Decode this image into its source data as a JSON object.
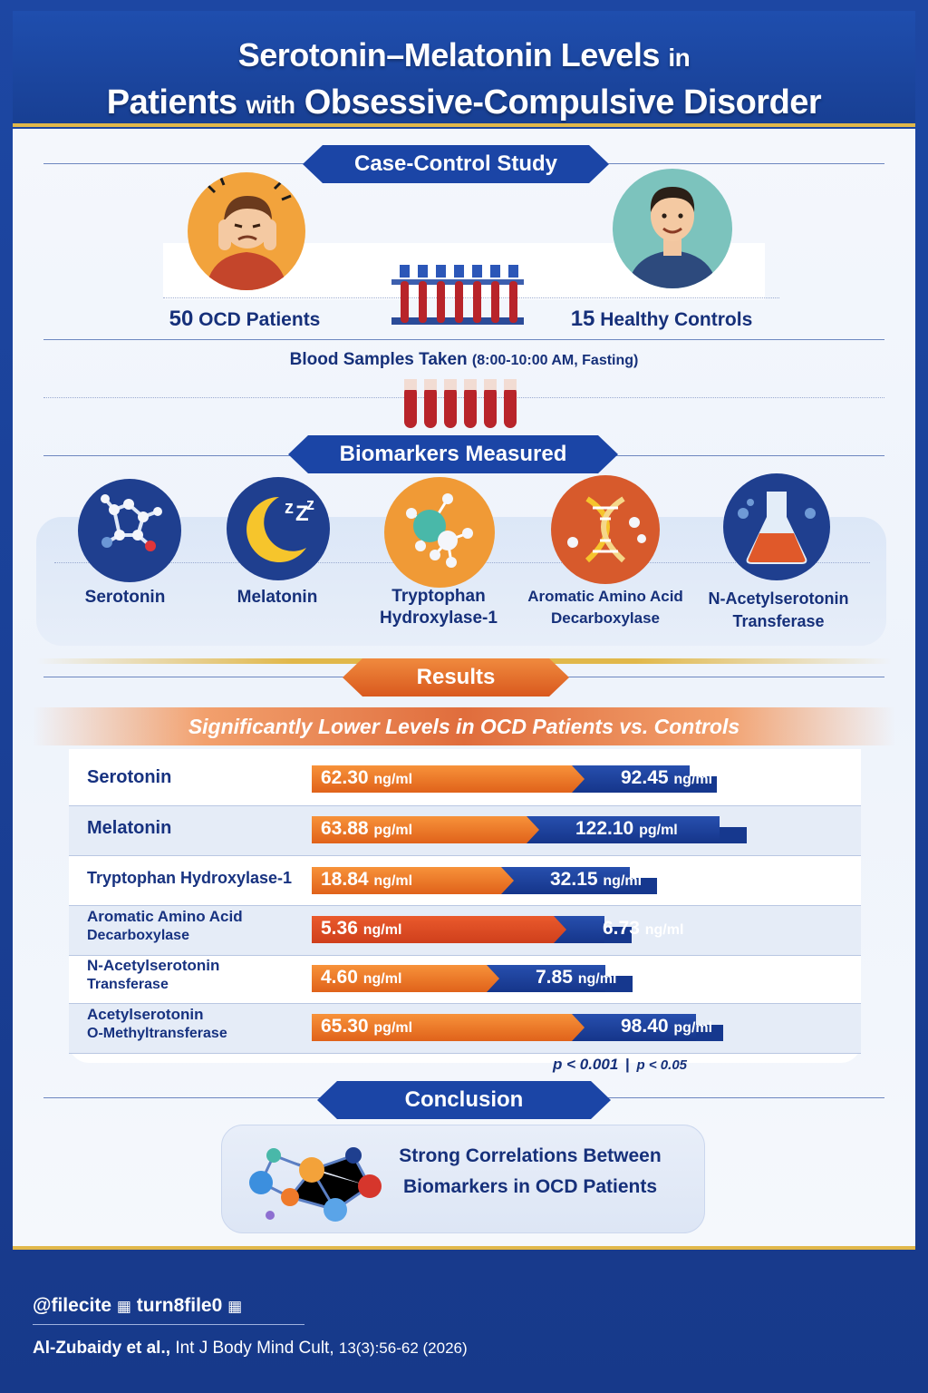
{
  "header": {
    "title_part1": "Serotonin–Melatonin Levels",
    "title_in": "in",
    "title_part2": "Patients",
    "title_with": "with",
    "title_part3": "Obsessive-Compulsive Disorder"
  },
  "study": {
    "banner": "Case-Control Study",
    "ocd_count": "50",
    "ocd_label": "OCD Patients",
    "control_count": "15",
    "control_label": "Healthy Controls",
    "blood_samples": "Blood Samples Taken",
    "blood_detail": "(8:00-10:00 AM, Fasting)"
  },
  "biomarkers": {
    "banner": "Biomarkers Measured",
    "items": [
      {
        "label": "Serotonin",
        "icon": "molecule-icon"
      },
      {
        "label": "Melatonin",
        "icon": "moon-icon"
      },
      {
        "label_l1": "Tryptophan",
        "label_l2": "Hydroxylase-1",
        "icon": "enzyme-icon"
      },
      {
        "label_l1": "Aromatic Amino Acid",
        "label_l2": "Decarboxylase",
        "icon": "dna-icon"
      },
      {
        "label_l1": "N-Acetylserotonin",
        "label_l2": "Transferase",
        "icon": "flask-icon"
      }
    ]
  },
  "results": {
    "banner": "Results",
    "subtitle": "Significantly Lower Levels in OCD Patients vs. Controls",
    "rows": [
      {
        "label_l1": "Serotonin",
        "label_l2": "",
        "ocd_value": "62.30",
        "control_value": "92.45",
        "unit": "ng/ml"
      },
      {
        "label_l1": "Melatonin",
        "label_l2": "",
        "ocd_value": "63.88",
        "control_value": "122.10",
        "unit": "pg/ml"
      },
      {
        "label_l1": "Tryptophan Hydroxylase-1",
        "label_l2": "",
        "ocd_value": "18.84",
        "control_value": "32.15",
        "unit": "ng/ml"
      },
      {
        "label_l1": "Aromatic Amino Acid",
        "label_l2": "Decarboxylase",
        "ocd_value": "5.36",
        "control_value": "6.73",
        "unit": "ng/ml"
      },
      {
        "label_l1": "N-Acetylserotonin",
        "label_l2": "Transferase",
        "ocd_value": "4.60",
        "control_value": "7.85",
        "unit": "ng/ml"
      },
      {
        "label_l1": "Acetylserotonin",
        "label_l2": "O-Methyltransferase",
        "ocd_value": "65.30",
        "control_value": "98.40",
        "unit": "pg/ml"
      }
    ],
    "p_value_1": "p < 0.001",
    "p_value_sep": "|",
    "p_value_2": "p < 0.05"
  },
  "conclusion": {
    "banner": "Conclusion",
    "text_l1": "Strong Correlations Between",
    "text_l2": "Biomarkers in OCD Patients"
  },
  "footer": {
    "handle": "@filecite",
    "handle_ref": "turn8file0",
    "cite_authors": "Al-Zubaidy et al.,",
    "cite_journal": "Int J Body Mind Cult,",
    "cite_issue": "13(3):56-62 (2026)"
  },
  "colors": {
    "navy": "#1b45a6",
    "orange": "#e86f2a",
    "gold": "#e1b84a",
    "dark_text": "#16307a"
  }
}
